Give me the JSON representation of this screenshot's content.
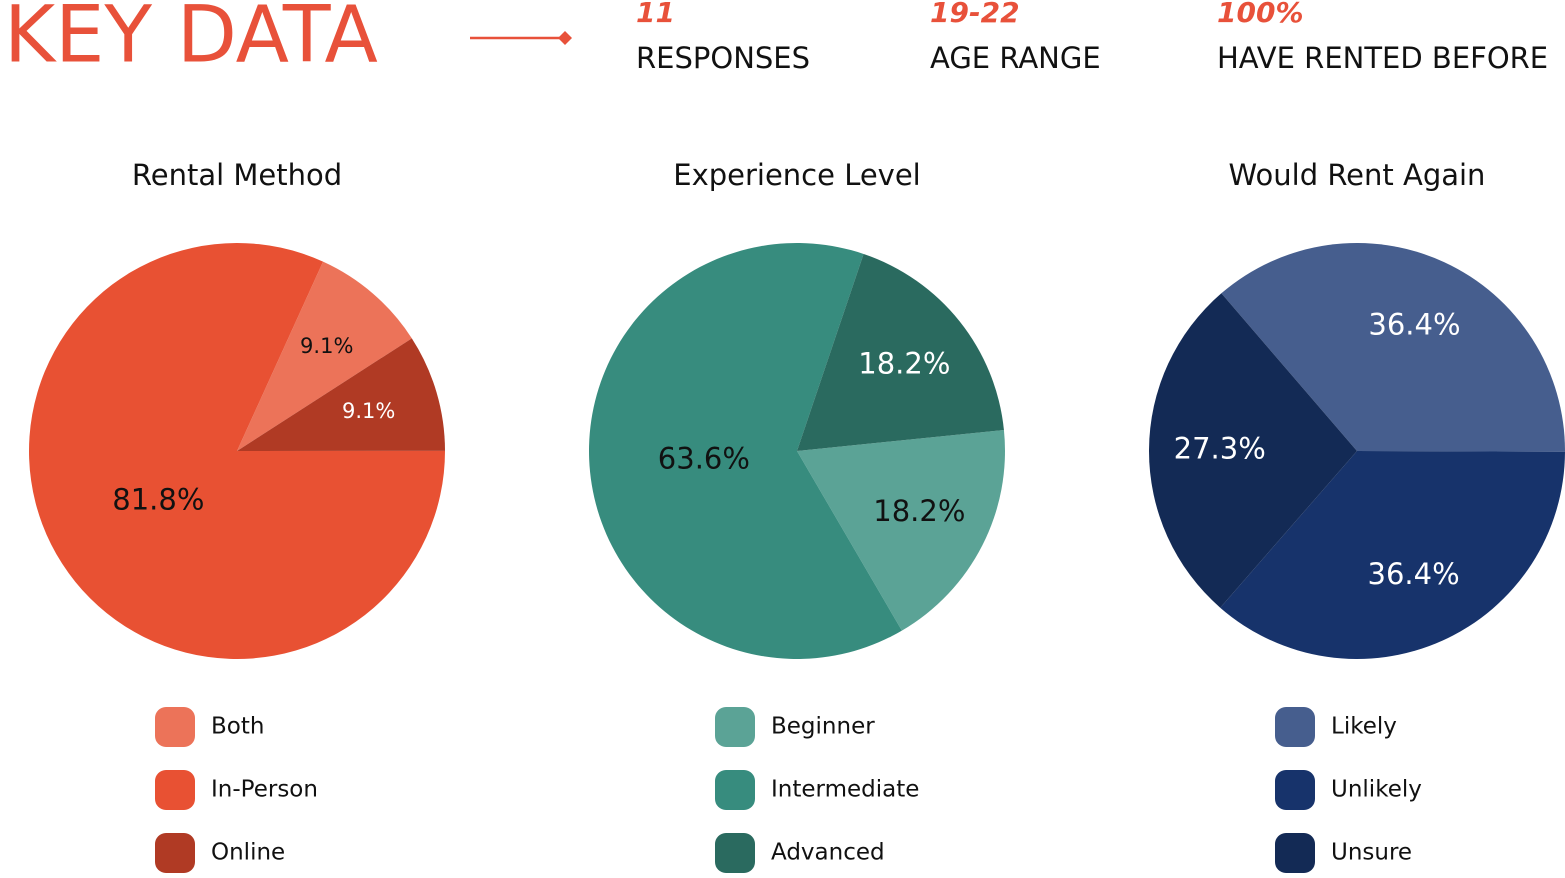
{
  "header": {
    "title": "KEY DATA",
    "stats": [
      {
        "value": "11",
        "label": "RESPONSES"
      },
      {
        "value": "19-22",
        "label": "AGE RANGE"
      },
      {
        "value": "100%",
        "label": "HAVE RENTED BEFORE"
      }
    ]
  },
  "chart_data": [
    {
      "type": "pie",
      "title": "Rental Method",
      "categories": [
        "Both",
        "In-Person",
        "Online"
      ],
      "values": [
        9.1,
        81.8,
        9.1
      ],
      "value_labels": [
        "9.1%",
        "81.8%",
        "9.1%"
      ],
      "colors": [
        "#ec7359",
        "#e85133",
        "#b03a24"
      ]
    },
    {
      "type": "pie",
      "title": "Experience Level",
      "categories": [
        "Beginner",
        "Intermediate",
        "Advanced"
      ],
      "values": [
        18.2,
        63.6,
        18.2
      ],
      "value_labels": [
        "18.2%",
        "63.6%",
        "18.2%"
      ],
      "colors": [
        "#5ba396",
        "#378c7e",
        "#2a6a5f"
      ]
    },
    {
      "type": "pie",
      "title": "Would Rent Again",
      "categories": [
        "Likely",
        "Unlikely",
        "Unsure"
      ],
      "values": [
        36.4,
        36.4,
        27.3
      ],
      "value_labels": [
        "36.4%",
        "36.4%",
        "27.3%"
      ],
      "colors": [
        "#465e8e",
        "#17336b",
        "#132a55"
      ]
    }
  ]
}
